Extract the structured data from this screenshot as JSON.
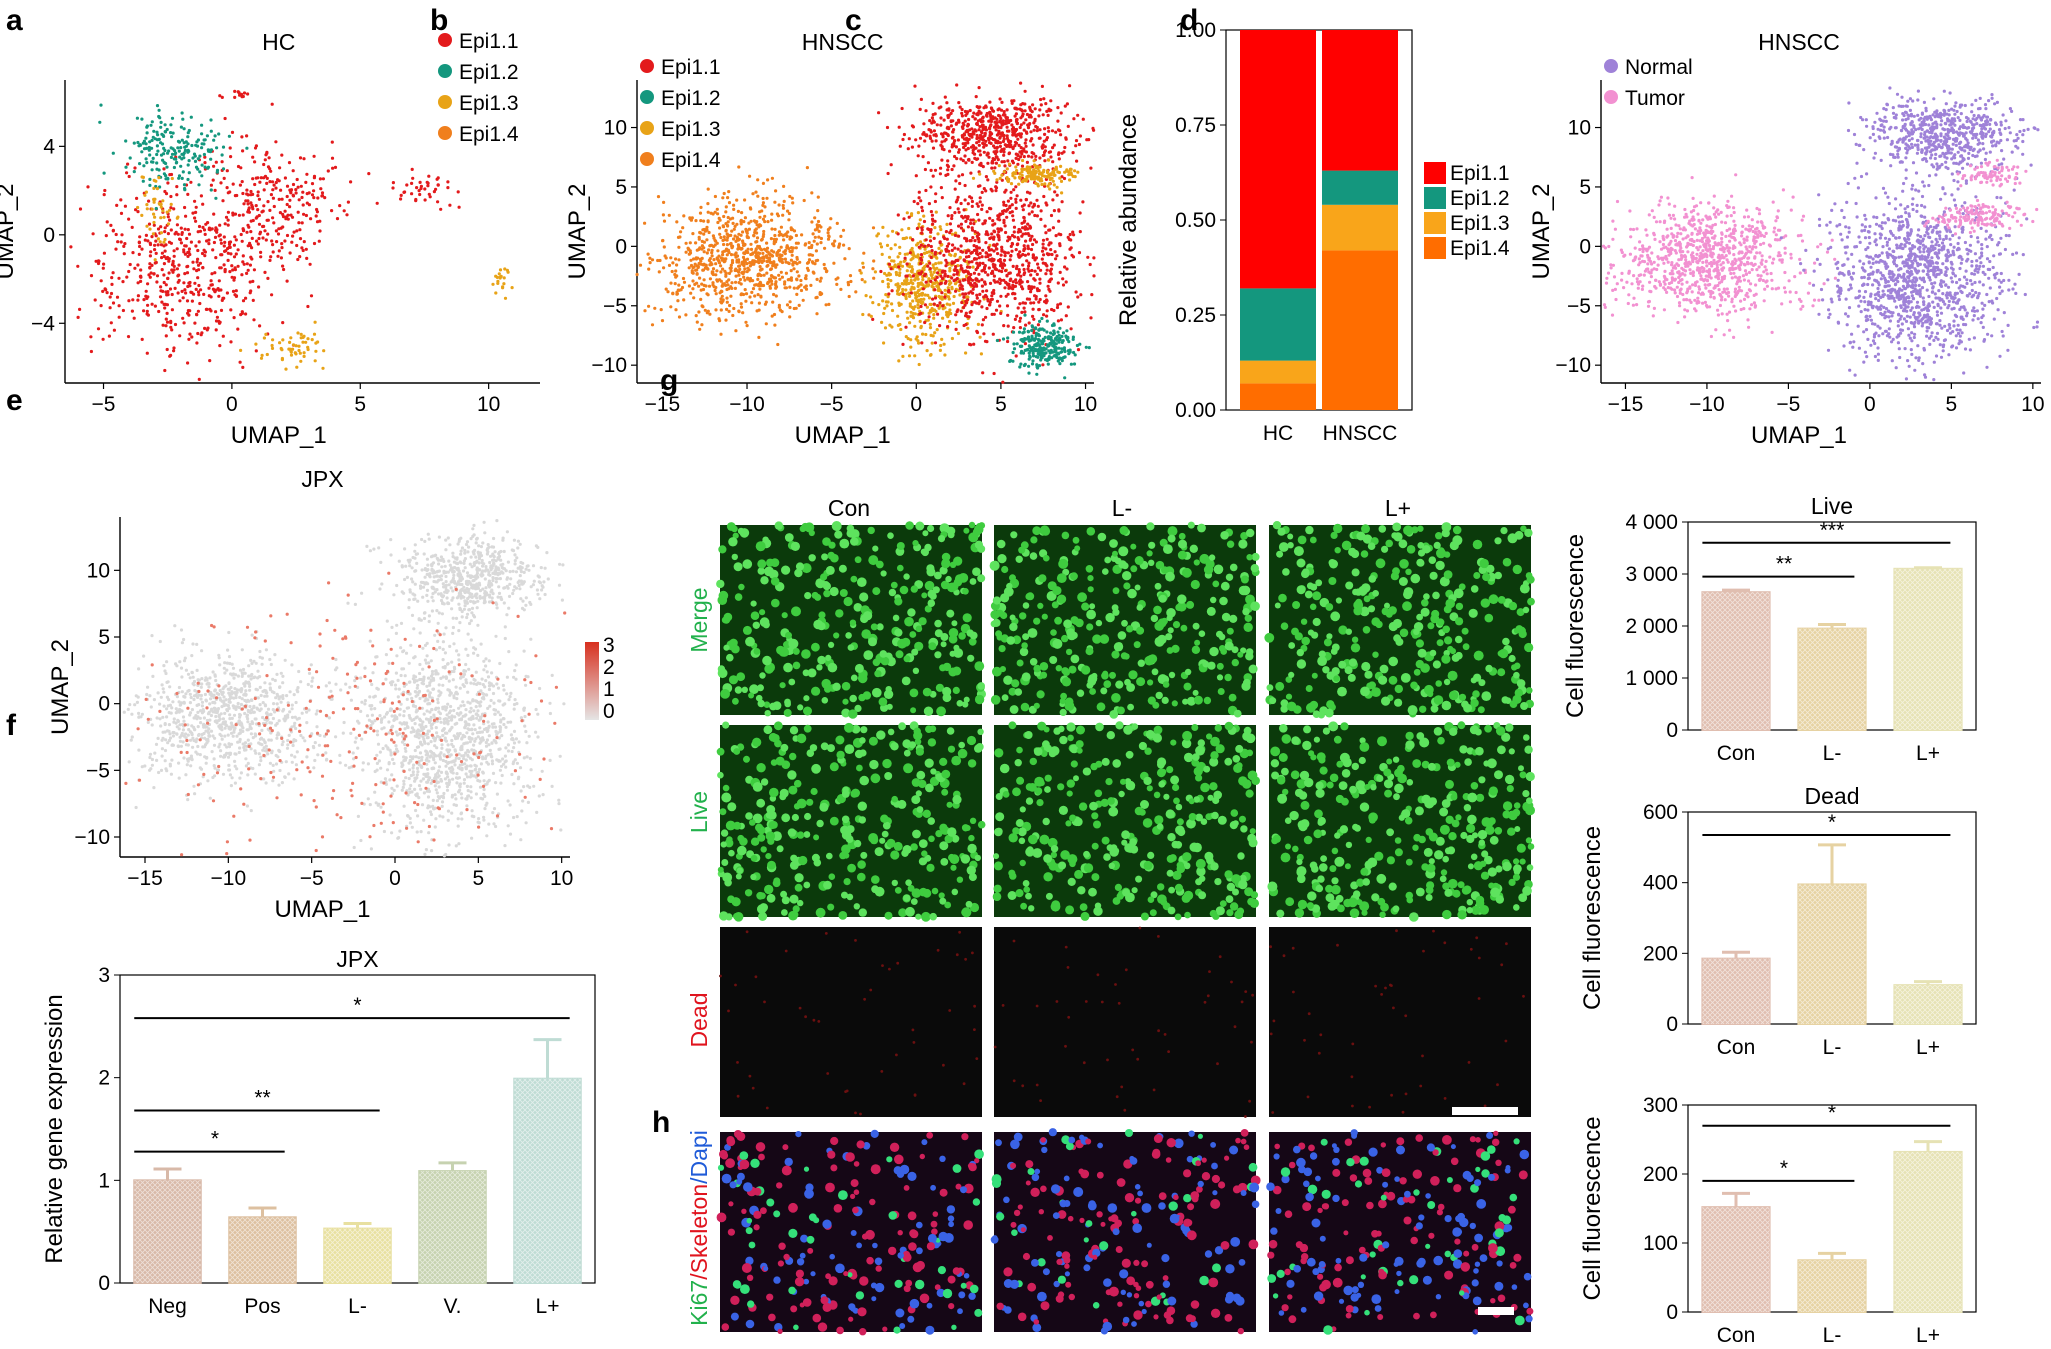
{
  "figure": {
    "panel_labels": [
      "a",
      "b",
      "c",
      "d",
      "e",
      "f",
      "g",
      "h"
    ]
  },
  "colors": {
    "epi11": "#e31a1c",
    "epi12": "#14977e",
    "epi13": "#e8a317",
    "epi14": "#f07f1d",
    "stack11": "#ff0000",
    "stack12": "#14977e",
    "stack13": "#f9a51a",
    "stack14": "#ff6d00",
    "normal": "#9f82d8",
    "tumor": "#f291d1",
    "grey": "#d9d9d9",
    "bar_neg": "#d8b9a8",
    "bar_pos": "#ddc0a0",
    "bar_lm": "#e8e0a0",
    "bar_v": "#c6d2b0",
    "bar_lp": "#bfdcd4",
    "bar_con": "#e0beb0",
    "bar_l_minus": "#e6d2a2",
    "bar_l_plus": "#e6e2b4"
  },
  "chart_data": [
    {
      "panel": "a",
      "type": "scatter",
      "title": "HC",
      "xlabel": "UMAP_1",
      "ylabel": "UMAP_2",
      "xlim": [
        -6.5,
        12
      ],
      "ylim": [
        -6.7,
        7
      ],
      "xticks": [
        "−5",
        "0",
        "5",
        "10"
      ],
      "xtick_values": [
        -5,
        0,
        5,
        10
      ],
      "yticks": [
        "−4",
        "0",
        "4"
      ],
      "ytick_values": [
        -4,
        0,
        4
      ],
      "legend": [
        "Epi1.1",
        "Epi1.2",
        "Epi1.3",
        "Epi1.4"
      ],
      "clusters": [
        {
          "series": "Epi1.1",
          "cx": -2.0,
          "cy": -1.5,
          "sx": 1.8,
          "sy": 2.0,
          "n": 520
        },
        {
          "series": "Epi1.1",
          "cx": 1.5,
          "cy": 1.5,
          "sx": 1.3,
          "sy": 1.5,
          "n": 260
        },
        {
          "series": "Epi1.2",
          "cx": -2.3,
          "cy": 3.8,
          "sx": 1.0,
          "sy": 0.9,
          "n": 200
        },
        {
          "series": "Epi1.3",
          "cx": -2.8,
          "cy": 1.0,
          "sx": 0.4,
          "sy": 0.8,
          "n": 45
        },
        {
          "series": "Epi1.3",
          "cx": 2.5,
          "cy": -5.2,
          "sx": 0.8,
          "sy": 0.4,
          "n": 55
        },
        {
          "series": "Epi1.1",
          "cx": 7.6,
          "cy": 2.0,
          "sx": 0.6,
          "sy": 0.4,
          "n": 40
        },
        {
          "series": "Epi1.3",
          "cx": 10.5,
          "cy": -2.0,
          "sx": 0.2,
          "sy": 0.3,
          "n": 20
        },
        {
          "series": "Epi1.1",
          "cx": 0.2,
          "cy": 6.3,
          "sx": 0.3,
          "sy": 0.1,
          "n": 12
        }
      ]
    },
    {
      "panel": "b",
      "type": "scatter",
      "title": "HNSCC",
      "xlabel": "UMAP_1",
      "ylabel": "UMAP_2",
      "xlim": [
        -16.5,
        10.5
      ],
      "ylim": [
        -11.5,
        14
      ],
      "xticks": [
        "−15",
        "−10",
        "−5",
        "0",
        "5",
        "10"
      ],
      "xtick_values": [
        -15,
        -10,
        -5,
        0,
        5,
        10
      ],
      "yticks": [
        "−10",
        "−5",
        "0",
        "5",
        "10"
      ],
      "ytick_values": [
        -10,
        -5,
        0,
        5,
        10
      ],
      "legend": [
        "Epi1.1",
        "Epi1.2",
        "Epi1.3",
        "Epi1.4"
      ],
      "clusters": [
        {
          "series": "Epi1.4",
          "cx": -10.0,
          "cy": -1.0,
          "sx": 2.8,
          "sy": 2.3,
          "n": 900
        },
        {
          "series": "Epi1.3",
          "cx": 0.5,
          "cy": -3.0,
          "sx": 1.5,
          "sy": 2.5,
          "n": 500
        },
        {
          "series": "Epi1.1",
          "cx": 4.5,
          "cy": 9.5,
          "sx": 2.2,
          "sy": 1.5,
          "n": 600
        },
        {
          "series": "Epi1.1",
          "cx": 4.5,
          "cy": -1.0,
          "sx": 2.5,
          "sy": 3.5,
          "n": 900
        },
        {
          "series": "Epi1.2",
          "cx": 7.5,
          "cy": -8.5,
          "sx": 1.0,
          "sy": 1.0,
          "n": 250
        },
        {
          "series": "Epi1.3",
          "cx": 7.0,
          "cy": 6.0,
          "sx": 1.2,
          "sy": 0.5,
          "n": 150
        }
      ]
    },
    {
      "panel": "c",
      "type": "bar",
      "stacked": true,
      "ylabel": "Relative abundance",
      "ylim": [
        0,
        1
      ],
      "categories": [
        "HC",
        "HNSCC"
      ],
      "yticks": [
        "0.00",
        "0.25",
        "0.50",
        "0.75",
        "1.00"
      ],
      "ytick_values": [
        0,
        0.25,
        0.5,
        0.75,
        1
      ],
      "series": [
        {
          "name": "Epi1.4",
          "values": [
            0.07,
            0.42
          ]
        },
        {
          "name": "Epi1.3",
          "values": [
            0.06,
            0.12
          ]
        },
        {
          "name": "Epi1.2",
          "values": [
            0.19,
            0.09
          ]
        },
        {
          "name": "Epi1.1",
          "values": [
            0.68,
            0.37
          ]
        }
      ],
      "legend": [
        "Epi1.1",
        "Epi1.2",
        "Epi1.3",
        "Epi1.4"
      ]
    },
    {
      "panel": "d",
      "type": "scatter",
      "title": "HNSCC",
      "xlabel": "UMAP_1",
      "ylabel": "UMAP_2",
      "xlim": [
        -16.5,
        10.5
      ],
      "ylim": [
        -11.5,
        14
      ],
      "xticks": [
        "−15",
        "−10",
        "−5",
        "0",
        "5",
        "10"
      ],
      "xtick_values": [
        -15,
        -10,
        -5,
        0,
        5,
        10
      ],
      "yticks": [
        "−10",
        "−5",
        "0",
        "5",
        "10"
      ],
      "ytick_values": [
        -10,
        -5,
        0,
        5,
        10
      ],
      "legend": [
        "Normal",
        "Tumor"
      ],
      "clusters": [
        {
          "series": "Tumor",
          "cx": -10.0,
          "cy": -1.0,
          "sx": 2.8,
          "sy": 2.3,
          "n": 900
        },
        {
          "series": "Normal",
          "cx": 3.0,
          "cy": -2.5,
          "sx": 2.6,
          "sy": 3.5,
          "n": 1200
        },
        {
          "series": "Normal",
          "cx": 4.5,
          "cy": 9.5,
          "sx": 2.2,
          "sy": 1.5,
          "n": 600
        },
        {
          "series": "Tumor",
          "cx": 6.5,
          "cy": 2.5,
          "sx": 1.3,
          "sy": 0.6,
          "n": 150
        },
        {
          "series": "Tumor",
          "cx": 7.5,
          "cy": 6.0,
          "sx": 0.8,
          "sy": 0.5,
          "n": 80
        }
      ]
    },
    {
      "panel": "e",
      "type": "scatter",
      "title": "JPX",
      "xlabel": "UMAP_1",
      "ylabel": "UMAP_2",
      "xlim": [
        -16.5,
        10.5
      ],
      "ylim": [
        -11.5,
        14
      ],
      "xticks": [
        "−15",
        "−10",
        "−5",
        "0",
        "5",
        "10"
      ],
      "xtick_values": [
        -15,
        -10,
        -5,
        0,
        5,
        10
      ],
      "yticks": [
        "−10",
        "−5",
        "0",
        "5",
        "10"
      ],
      "ytick_values": [
        -10,
        -5,
        0,
        5,
        10
      ],
      "colorbar_ticks": [
        "3",
        "2",
        "1",
        "0"
      ],
      "clusters": [
        {
          "series": "grey",
          "cx": -10.0,
          "cy": -1.0,
          "sx": 2.8,
          "sy": 2.3,
          "n": 900
        },
        {
          "series": "grey",
          "cx": 3.0,
          "cy": -2.5,
          "sx": 2.6,
          "sy": 3.5,
          "n": 1200
        },
        {
          "series": "grey",
          "cx": 4.5,
          "cy": 9.5,
          "sx": 2.2,
          "sy": 1.5,
          "n": 600
        },
        {
          "series": "expr",
          "cx": -2.0,
          "cy": -2.0,
          "sx": 6.5,
          "sy": 5.0,
          "n": 260
        }
      ]
    },
    {
      "panel": "f",
      "type": "bar",
      "title": "JPX",
      "ylabel": "Relative gene expression",
      "ylim": [
        0,
        3
      ],
      "categories": [
        "Neg",
        "Pos",
        "L-",
        "V.",
        "L+"
      ],
      "values": [
        1.0,
        0.64,
        0.53,
        1.09,
        1.99
      ],
      "errors": [
        0.11,
        0.09,
        0.05,
        0.08,
        0.38
      ],
      "yticks": [
        "0",
        "1",
        "2",
        "3"
      ],
      "ytick_values": [
        0,
        1,
        2,
        3
      ],
      "significance": [
        {
          "from": "Neg",
          "to": "Pos",
          "label": "*",
          "y": 1.28
        },
        {
          "from": "Neg",
          "to": "L-",
          "label": "**",
          "y": 1.68
        },
        {
          "from": "Neg",
          "to": "L+",
          "label": "*",
          "y": 2.58
        }
      ]
    },
    {
      "panel": "g-live",
      "type": "bar",
      "title": "Live",
      "ylabel": "Cell fluorescence",
      "ylim": [
        0,
        4000
      ],
      "categories": [
        "Con",
        "L-",
        "L+"
      ],
      "values": [
        2650,
        1950,
        3100
      ],
      "errors": [
        40,
        80,
        20
      ],
      "yticks": [
        "0",
        "1 000",
        "2 000",
        "3 000",
        "4 000"
      ],
      "ytick_values": [
        0,
        1000,
        2000,
        3000,
        4000
      ],
      "significance": [
        {
          "from": "Con",
          "to": "L-",
          "label": "**",
          "y": 2950
        },
        {
          "from": "Con",
          "to": "L+",
          "label": "***",
          "y": 3600
        }
      ]
    },
    {
      "panel": "g-dead",
      "type": "bar",
      "title": "Dead",
      "ylabel": "Cell fluorescence",
      "ylim": [
        0,
        600
      ],
      "categories": [
        "Con",
        "L-",
        "L+"
      ],
      "values": [
        185,
        395,
        110
      ],
      "errors": [
        18,
        112,
        10
      ],
      "yticks": [
        "0",
        "200",
        "400",
        "600"
      ],
      "ytick_values": [
        0,
        200,
        400,
        600
      ],
      "significance": [
        {
          "from": "Con",
          "to": "L+",
          "label": "*",
          "y": 535
        }
      ]
    },
    {
      "panel": "h",
      "type": "bar",
      "title": "",
      "ylabel": "Cell fluorescence",
      "ylim": [
        0,
        300
      ],
      "categories": [
        "Con",
        "L-",
        "L+"
      ],
      "values": [
        152,
        75,
        232
      ],
      "errors": [
        20,
        10,
        15
      ],
      "yticks": [
        "0",
        "100",
        "200",
        "300"
      ],
      "ytick_values": [
        0,
        100,
        200,
        300
      ],
      "significance": [
        {
          "from": "Con",
          "to": "L-",
          "label": "*",
          "y": 190
        },
        {
          "from": "Con",
          "to": "L+",
          "label": "*",
          "y": 270
        }
      ]
    }
  ],
  "micrographs": {
    "columns": [
      "Con",
      "L-",
      "L+"
    ],
    "rows": [
      "Merge",
      "Live",
      "Dead"
    ],
    "h_label_parts": [
      "Ki67",
      "/",
      "Skeleton",
      "/",
      "Dapi"
    ]
  }
}
